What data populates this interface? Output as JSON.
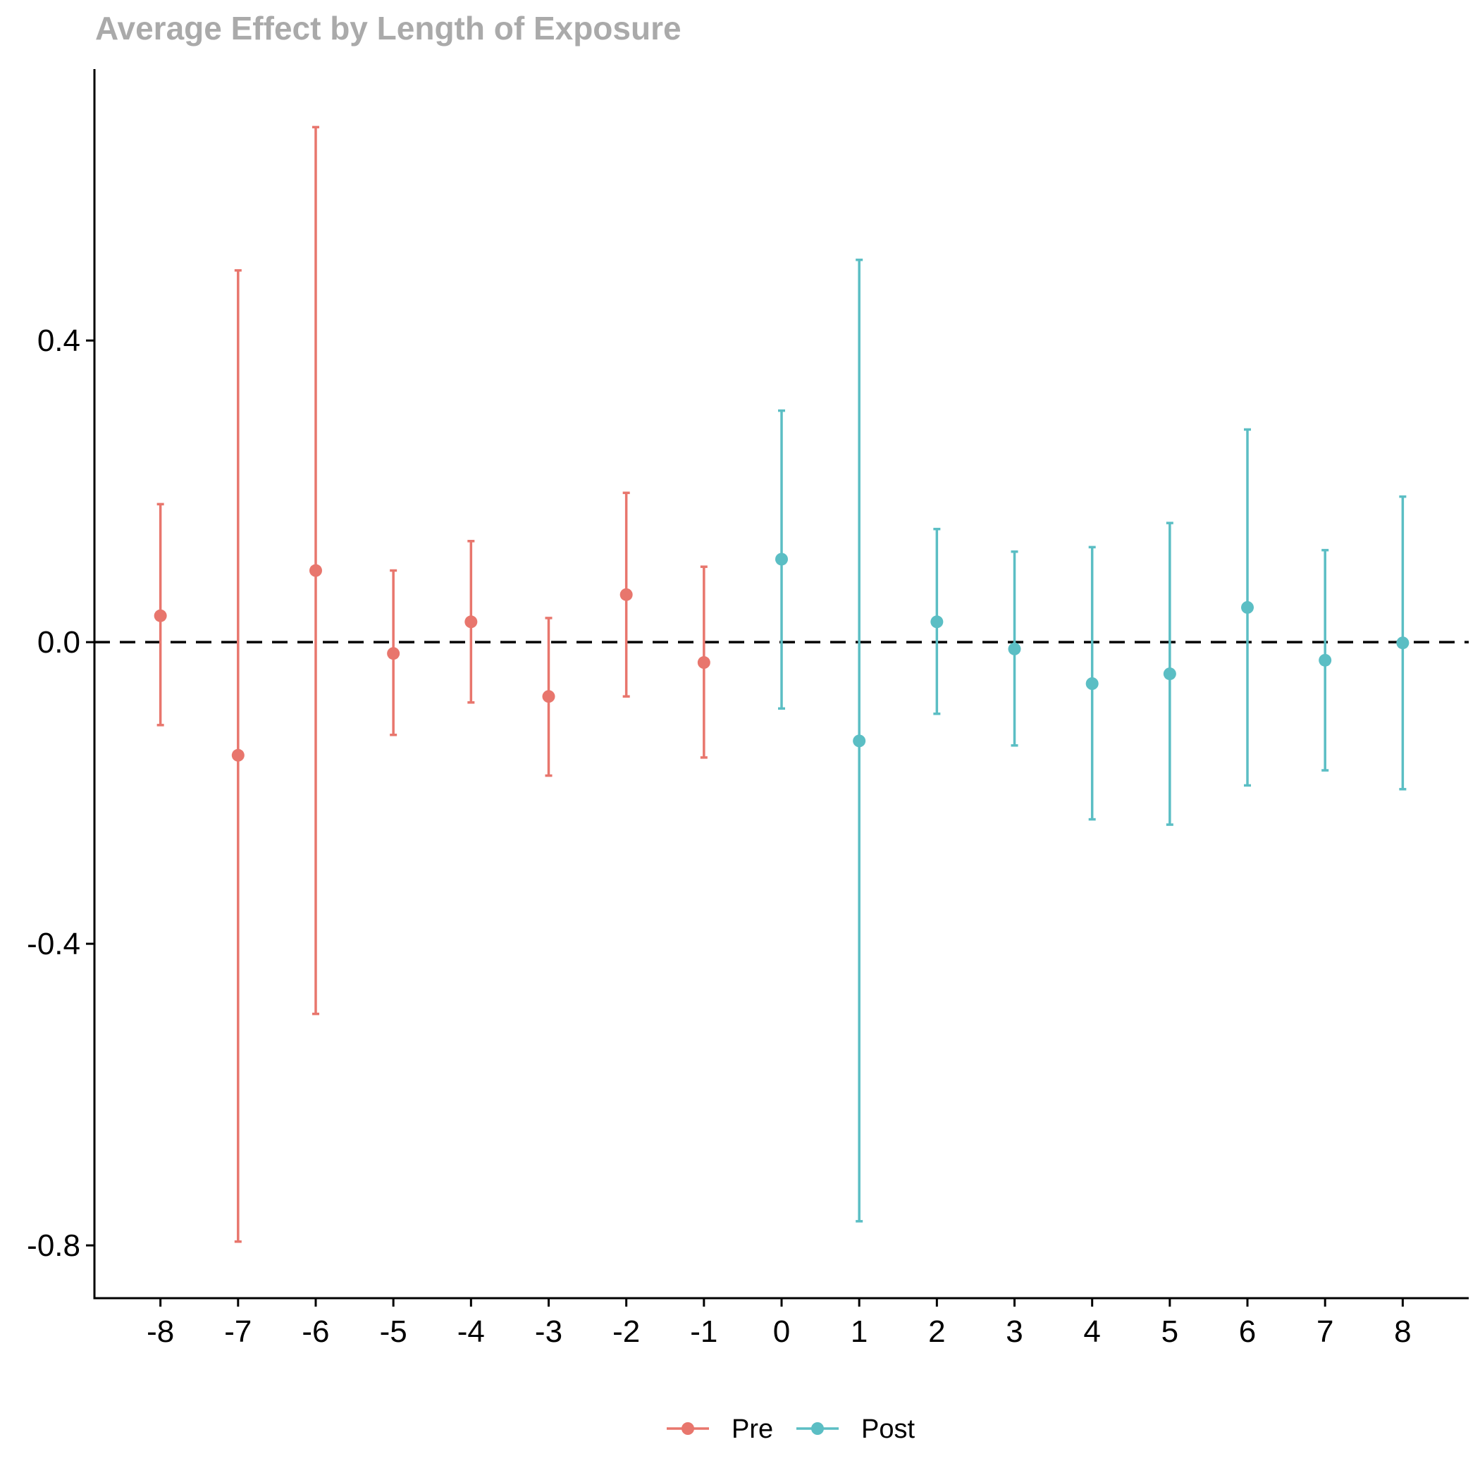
{
  "chart_data": {
    "type": "scatter",
    "title": "Average Effect by Length of Exposure",
    "xlabel": "",
    "ylabel": "",
    "x_ticks": [
      -8,
      -7,
      -6,
      -5,
      -4,
      -3,
      -2,
      -1,
      0,
      1,
      2,
      3,
      4,
      5,
      6,
      7,
      8
    ],
    "y_ticks": [
      "0.4",
      "0.0",
      "-0.4",
      "-0.8"
    ],
    "ylim": [
      -0.87,
      0.76
    ],
    "xlim": [
      -8.85,
      8.85
    ],
    "reference_line": {
      "y": 0.0,
      "style": "dashed"
    },
    "grid": false,
    "legend_position": "bottom",
    "colors": {
      "Pre": "#E8766D",
      "Post": "#5BBEC4",
      "title": "#AAAAAA",
      "axis": "#000000"
    },
    "series": [
      {
        "name": "Pre",
        "points": [
          {
            "x": -8,
            "y": 0.035,
            "lower": -0.11,
            "upper": 0.183
          },
          {
            "x": -7,
            "y": -0.15,
            "lower": -0.795,
            "upper": 0.493
          },
          {
            "x": -6,
            "y": 0.095,
            "lower": -0.493,
            "upper": 0.683
          },
          {
            "x": -5,
            "y": -0.015,
            "lower": -0.123,
            "upper": 0.095
          },
          {
            "x": -4,
            "y": 0.027,
            "lower": -0.08,
            "upper": 0.134
          },
          {
            "x": -3,
            "y": -0.072,
            "lower": -0.177,
            "upper": 0.032
          },
          {
            "x": -2,
            "y": 0.063,
            "lower": -0.072,
            "upper": 0.198
          },
          {
            "x": -1,
            "y": -0.027,
            "lower": -0.153,
            "upper": 0.1
          }
        ]
      },
      {
        "name": "Post",
        "points": [
          {
            "x": 0,
            "y": 0.11,
            "lower": -0.088,
            "upper": 0.307
          },
          {
            "x": 1,
            "y": -0.131,
            "lower": -0.768,
            "upper": 0.507
          },
          {
            "x": 2,
            "y": 0.027,
            "lower": -0.095,
            "upper": 0.15
          },
          {
            "x": 3,
            "y": -0.009,
            "lower": -0.137,
            "upper": 0.12
          },
          {
            "x": 4,
            "y": -0.055,
            "lower": -0.235,
            "upper": 0.126
          },
          {
            "x": 5,
            "y": -0.042,
            "lower": -0.242,
            "upper": 0.158
          },
          {
            "x": 6,
            "y": 0.046,
            "lower": -0.19,
            "upper": 0.282
          },
          {
            "x": 7,
            "y": -0.024,
            "lower": -0.17,
            "upper": 0.122
          },
          {
            "x": 8,
            "y": -0.001,
            "lower": -0.195,
            "upper": 0.193
          }
        ]
      }
    ]
  }
}
